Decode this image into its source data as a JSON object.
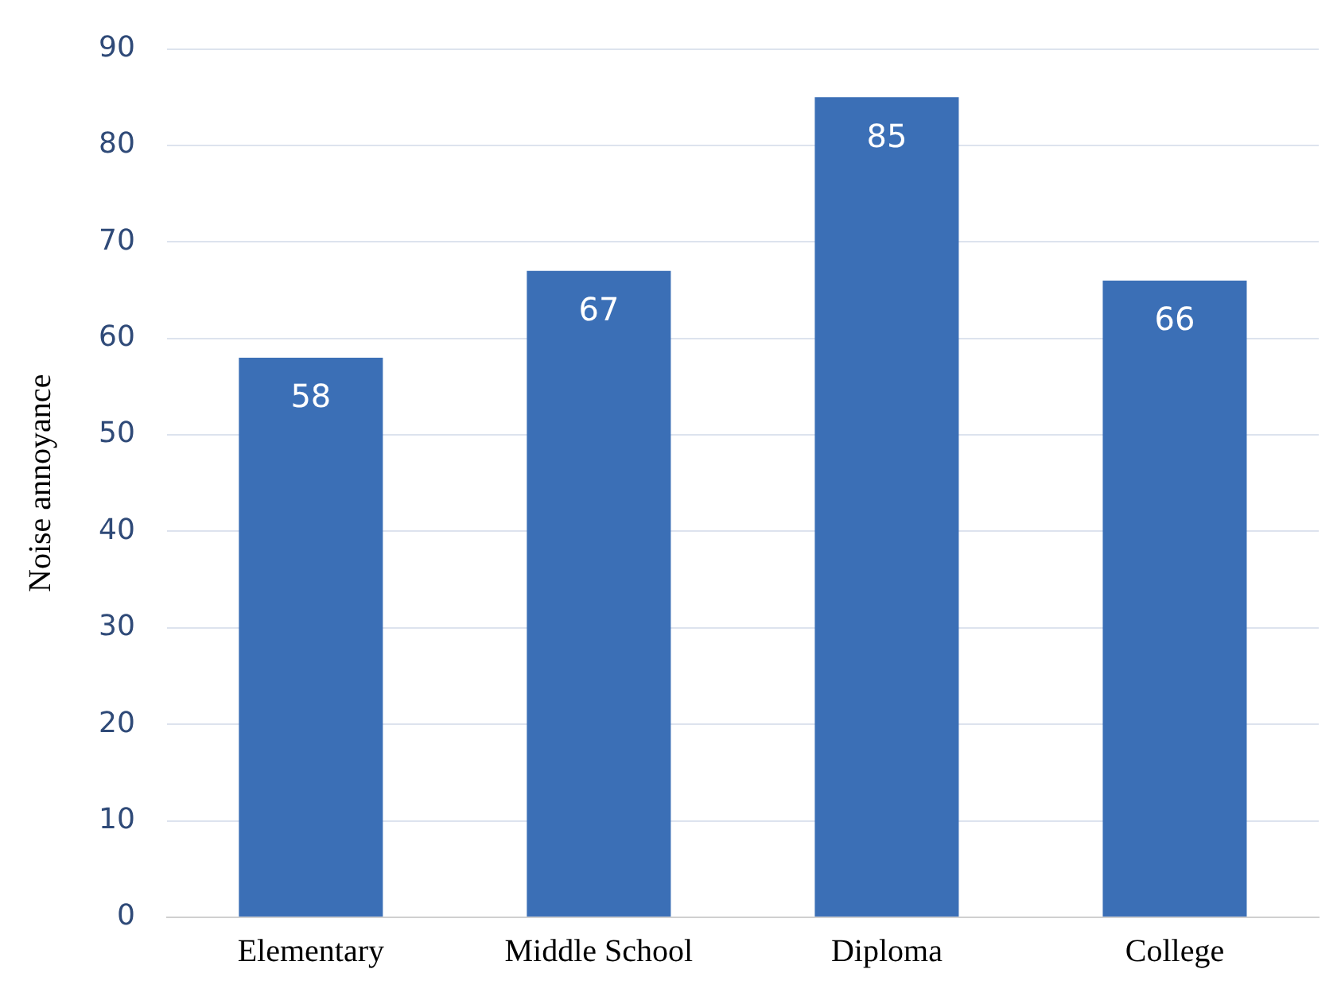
{
  "chart_data": {
    "type": "bar",
    "ylabel": "Noise annoyance",
    "categories": [
      "Elementary",
      "Middle School",
      "Diploma",
      "College"
    ],
    "values": [
      58,
      67,
      85,
      66
    ],
    "color": "#3b6fb6",
    "ylim": [
      0,
      90
    ],
    "yticks": [
      0,
      10,
      20,
      30,
      40,
      50,
      60,
      70,
      80,
      90
    ],
    "grid": "y",
    "legend": false,
    "data_labels": true
  }
}
